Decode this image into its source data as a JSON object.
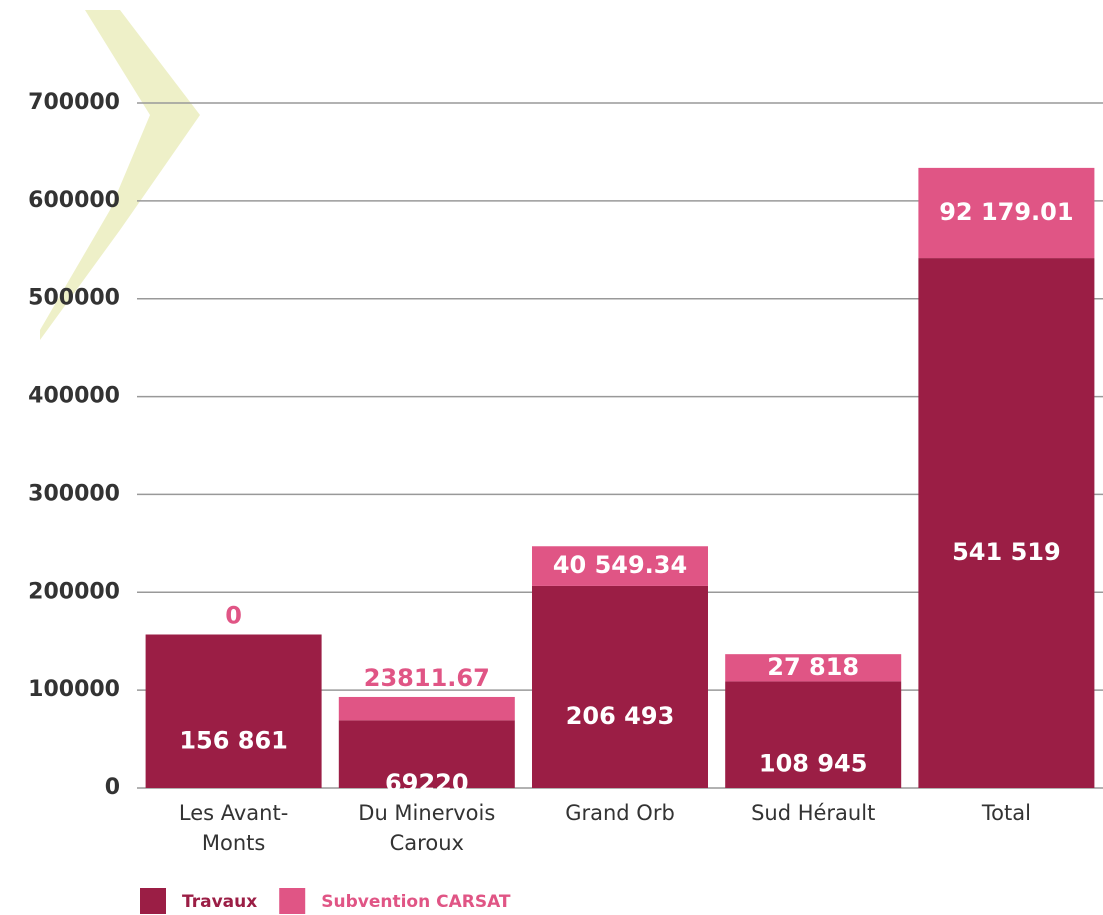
{
  "chart_data": {
    "type": "stacked-bar",
    "categories": [
      "Les Avant-Monts",
      "Du Minervois Caroux",
      "Grand Orb",
      "Sud Hérault",
      "Total"
    ],
    "series": [
      {
        "name": "Travaux",
        "color": "#9b1e45",
        "values": [
          156861,
          69220,
          206493,
          108945,
          541519
        ],
        "value_labels": [
          "156 861",
          "69220",
          "206 493",
          "108 945",
          "541 519"
        ]
      },
      {
        "name": "Subvention CARSAT",
        "color": "#e05585",
        "values": [
          0,
          23811.67,
          40549.34,
          27818,
          92179.01
        ],
        "value_labels": [
          "0",
          "23811.67",
          "40 549.34",
          "27 818",
          "92 179.01"
        ]
      }
    ],
    "ylim": [
      0,
      700000
    ],
    "yticks": [
      0,
      100000,
      200000,
      300000,
      400000,
      500000,
      600000,
      700000
    ],
    "grid": true
  }
}
